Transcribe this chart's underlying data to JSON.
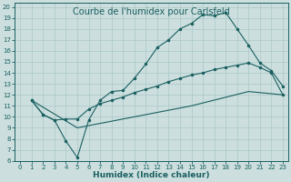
{
  "title": "Courbe de l'humidex pour Carlsfeld",
  "xlabel": "Humidex (Indice chaleur)",
  "xlim": [
    -0.5,
    23.5
  ],
  "ylim": [
    6,
    20.4
  ],
  "xticks": [
    0,
    1,
    2,
    3,
    4,
    5,
    6,
    7,
    8,
    9,
    10,
    11,
    12,
    13,
    14,
    15,
    16,
    17,
    18,
    19,
    20,
    21,
    22,
    23
  ],
  "yticks": [
    6,
    7,
    8,
    9,
    10,
    11,
    12,
    13,
    14,
    15,
    16,
    17,
    18,
    19,
    20
  ],
  "bg_color": "#ccdede",
  "grid_color": "#aac8c8",
  "line_color": "#1a6060",
  "curve1_x": [
    1,
    2,
    3,
    4,
    5,
    6,
    7,
    8,
    9,
    10,
    11,
    12,
    13,
    14,
    15,
    16,
    17,
    18,
    19,
    20,
    21,
    22,
    23
  ],
  "curve1_y": [
    11.5,
    10.2,
    9.7,
    7.8,
    6.3,
    9.7,
    11.5,
    12.3,
    12.4,
    13.5,
    14.8,
    16.3,
    17.0,
    18.0,
    18.5,
    19.3,
    19.2,
    19.5,
    18.0,
    16.5,
    14.9,
    14.2,
    12.8
  ],
  "curve2_x": [
    1,
    2,
    3,
    4,
    5,
    6,
    7,
    8,
    9,
    10,
    11,
    12,
    13,
    14,
    15,
    16,
    17,
    18,
    19,
    20,
    21,
    22,
    23
  ],
  "curve2_y": [
    11.5,
    10.2,
    9.7,
    9.8,
    9.8,
    10.7,
    11.2,
    11.5,
    11.8,
    12.2,
    12.5,
    12.8,
    13.2,
    13.5,
    13.8,
    14.0,
    14.3,
    14.5,
    14.7,
    14.9,
    14.5,
    14.0,
    12.0
  ],
  "curve3_x": [
    1,
    5,
    10,
    15,
    20,
    23
  ],
  "curve3_y": [
    11.5,
    9.0,
    10.0,
    11.0,
    12.3,
    12.0
  ],
  "title_fontsize": 7,
  "tick_fontsize": 5,
  "label_fontsize": 6.5
}
